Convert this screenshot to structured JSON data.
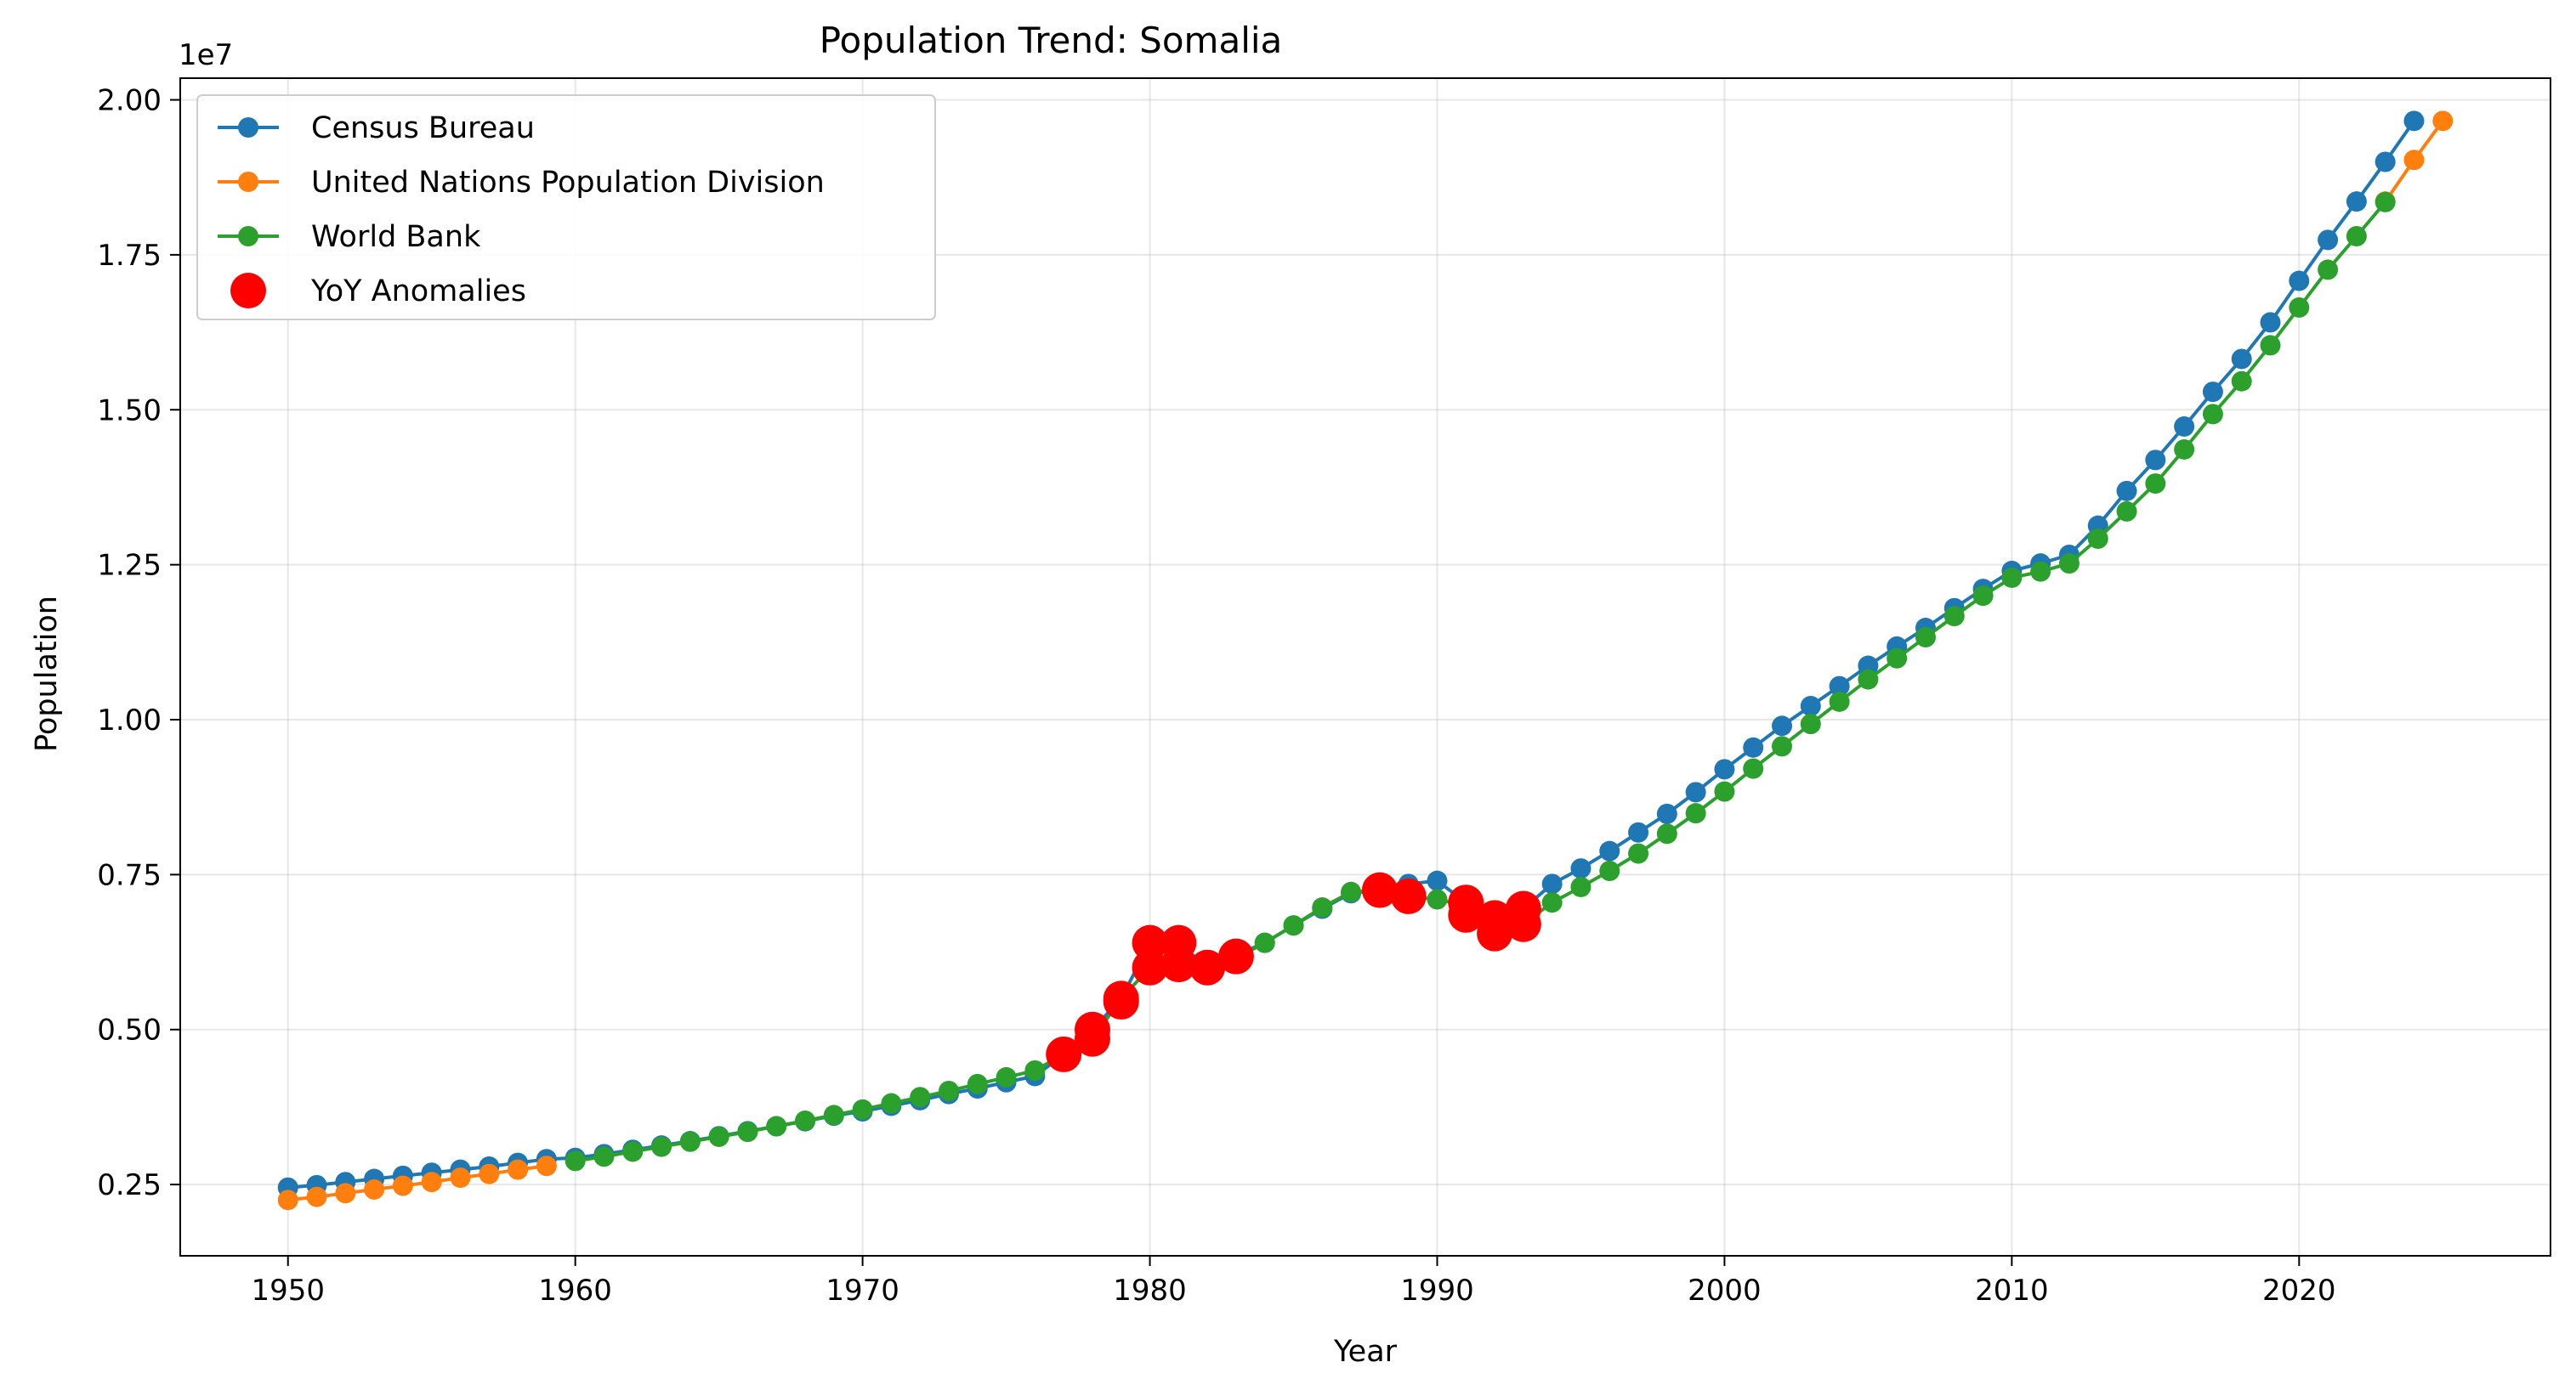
{
  "chart_data": {
    "type": "line",
    "title": "Population Trend: Somalia",
    "xlabel": "Year",
    "ylabel": "Population",
    "y_offset_label": "1e7",
    "xlim": [
      1946.25,
      2028.75
    ],
    "ylim": [
      1350000,
      20350000
    ],
    "x_ticks": [
      1950,
      1960,
      1970,
      1980,
      1990,
      2000,
      2010,
      2020
    ],
    "x_tick_labels": [
      "1950",
      "1960",
      "1970",
      "1980",
      "1990",
      "2000",
      "2010",
      "2020"
    ],
    "y_ticks": [
      2500000,
      5000000,
      7500000,
      10000000,
      12500000,
      15000000,
      17500000,
      20000000
    ],
    "y_tick_labels": [
      "0.25",
      "0.50",
      "0.75",
      "1.00",
      "1.25",
      "1.50",
      "1.75",
      "2.00"
    ],
    "grid": true,
    "legend_position": "top-left",
    "series": [
      {
        "name": "Census Bureau",
        "color": "#1f77b4",
        "marker": "circle",
        "x": [
          1950,
          1951,
          1952,
          1953,
          1954,
          1955,
          1956,
          1957,
          1958,
          1959,
          1960,
          1961,
          1962,
          1963,
          1964,
          1965,
          1966,
          1967,
          1968,
          1969,
          1970,
          1971,
          1972,
          1973,
          1974,
          1975,
          1976,
          1977,
          1978,
          1979,
          1980,
          1981,
          1982,
          1983,
          1984,
          1985,
          1986,
          1987,
          1988,
          1989,
          1990,
          1991,
          1992,
          1993,
          1994,
          1995,
          1996,
          1997,
          1998,
          1999,
          2000,
          2001,
          2002,
          2003,
          2004,
          2005,
          2006,
          2007,
          2008,
          2009,
          2010,
          2011,
          2012,
          2013,
          2014,
          2015,
          2016,
          2017,
          2018,
          2019,
          2020,
          2021,
          2022,
          2023,
          2024
        ],
        "y": [
          2450000,
          2490000,
          2540000,
          2590000,
          2640000,
          2690000,
          2740000,
          2790000,
          2850000,
          2910000,
          2930000,
          2990000,
          3060000,
          3130000,
          3200000,
          3280000,
          3360000,
          3440000,
          3520000,
          3610000,
          3680000,
          3770000,
          3860000,
          3960000,
          4050000,
          4150000,
          4250000,
          4600000,
          5000000,
          5500000,
          6400000,
          6400000,
          6000000,
          6200000,
          6400000,
          6680000,
          6950000,
          7200000,
          7250000,
          7350000,
          7400000,
          7050000,
          6800000,
          6950000,
          7350000,
          7600000,
          7880000,
          8180000,
          8480000,
          8830000,
          9200000,
          9550000,
          9900000,
          10220000,
          10540000,
          10870000,
          11180000,
          11480000,
          11800000,
          12110000,
          12400000,
          12520000,
          12660000,
          13130000,
          13690000,
          14190000,
          14730000,
          15290000,
          15820000,
          16410000,
          17080000,
          17740000,
          18360000,
          19000000,
          19660000
        ]
      },
      {
        "name": "United Nations Population Division",
        "color": "#ff7f0e",
        "marker": "circle",
        "x": [
          1950,
          1951,
          1952,
          1953,
          1954,
          1955,
          1956,
          1957,
          1958,
          1959,
          2023,
          2024,
          2025
        ],
        "y": [
          2250000,
          2300000,
          2360000,
          2420000,
          2480000,
          2540000,
          2610000,
          2670000,
          2740000,
          2800000,
          18360000,
          19030000,
          19660000
        ]
      },
      {
        "name": "World Bank",
        "color": "#2ca02c",
        "marker": "circle",
        "x": [
          1960,
          1961,
          1962,
          1963,
          1964,
          1965,
          1966,
          1967,
          1968,
          1969,
          1970,
          1971,
          1972,
          1973,
          1974,
          1975,
          1976,
          1977,
          1978,
          1979,
          1980,
          1981,
          1982,
          1983,
          1984,
          1985,
          1986,
          1987,
          1988,
          1989,
          1990,
          1991,
          1992,
          1993,
          1994,
          1995,
          1996,
          1997,
          1998,
          1999,
          2000,
          2001,
          2002,
          2003,
          2004,
          2005,
          2006,
          2007,
          2008,
          2009,
          2010,
          2011,
          2012,
          2013,
          2014,
          2015,
          2016,
          2017,
          2018,
          2019,
          2020,
          2021,
          2022,
          2023
        ],
        "y": [
          2880000,
          2950000,
          3030000,
          3110000,
          3190000,
          3270000,
          3350000,
          3440000,
          3530000,
          3620000,
          3710000,
          3810000,
          3910000,
          4010000,
          4120000,
          4230000,
          4340000,
          4600000,
          4850000,
          5500000,
          6000000,
          6050000,
          6000000,
          6150000,
          6400000,
          6680000,
          6970000,
          7220000,
          7250000,
          7150000,
          7100000,
          7000000,
          6550000,
          6700000,
          7050000,
          7300000,
          7560000,
          7840000,
          8160000,
          8490000,
          8840000,
          9210000,
          9570000,
          9930000,
          10290000,
          10650000,
          10990000,
          11330000,
          11670000,
          12000000,
          12290000,
          12390000,
          12520000,
          12920000,
          13360000,
          13810000,
          14360000,
          14930000,
          15460000,
          16040000,
          16650000,
          17260000,
          17800000,
          18350000
        ]
      },
      {
        "name": "YoY Anomalies",
        "color": "#ff0000",
        "marker": "large-circle",
        "x": [
          1977,
          1978,
          1978,
          1979,
          1979,
          1980,
          1980,
          1981,
          1981,
          1982,
          1983,
          1988,
          1989,
          1991,
          1991,
          1992,
          1992,
          1993,
          1993
        ],
        "y": [
          4600000,
          4850000,
          5000000,
          5450000,
          5500000,
          6000000,
          6400000,
          6050000,
          6400000,
          6000000,
          6180000,
          7250000,
          7150000,
          6850000,
          7050000,
          6550000,
          6800000,
          6700000,
          6950000
        ]
      }
    ]
  }
}
